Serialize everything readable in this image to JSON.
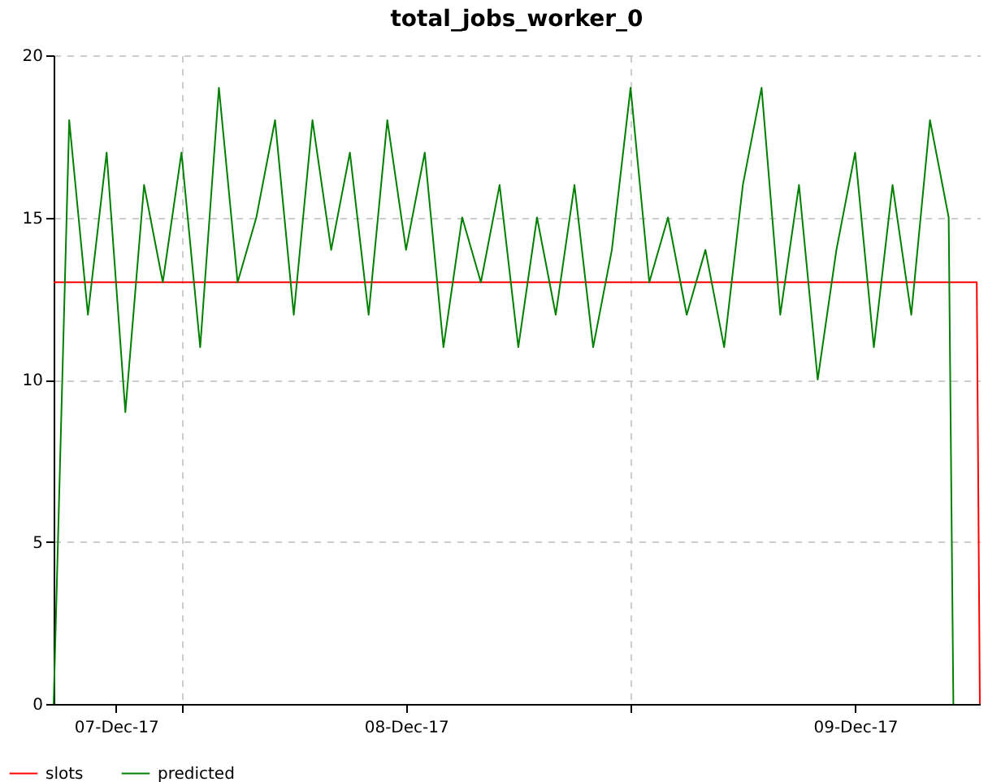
{
  "chart_data": {
    "type": "line",
    "title": "total_jobs_worker_0",
    "xlim": [
      "--12-07T05:10",
      "--12-09T06:40"
    ],
    "xticks": [
      {
        "value": "--12-07T08:30",
        "label": "07-Dec-17"
      },
      {
        "value": "--12-07T12:00",
        "label": null
      },
      {
        "value": "--12-08T00:00",
        "label": "08-Dec-17"
      },
      {
        "value": "--12-08T12:00",
        "label": null
      },
      {
        "value": "--12-09T00:00",
        "label": "09-Dec-17"
      }
    ],
    "ylim": [
      0,
      20
    ],
    "yticks": [
      0,
      5,
      10,
      15,
      20
    ],
    "grid": true,
    "legend": "bottom left",
    "series": [
      {
        "name": "slots",
        "color": "#ff0000",
        "x": [
          "--12-07T05:10",
          "--12-09T06:30",
          "--12-09T06:40"
        ],
        "values": [
          13,
          13,
          0
        ]
      },
      {
        "name": "predicted",
        "color": "#008000",
        "x": [
          "--12-07T05:10",
          "--12-07T06:00",
          "--12-07T07:00",
          "--12-07T08:00",
          "--12-07T09:00",
          "--12-07T10:00",
          "--12-07T11:00",
          "--12-07T12:00",
          "--12-07T13:00",
          "--12-07T14:00",
          "--12-07T15:00",
          "--12-07T16:00",
          "--12-07T17:00",
          "--12-07T18:00",
          "--12-07T19:00",
          "--12-07T20:00",
          "--12-07T21:00",
          "--12-07T22:00",
          "--12-07T23:00",
          "--12-08T00:00",
          "--12-08T01:00",
          "--12-08T02:00",
          "--12-08T03:00",
          "--12-08T04:00",
          "--12-08T05:00",
          "--12-08T06:00",
          "--12-08T07:00",
          "--12-08T08:00",
          "--12-08T09:00",
          "--12-08T10:00",
          "--12-08T11:00",
          "--12-08T12:00",
          "--12-08T13:00",
          "--12-08T14:00",
          "--12-08T15:00",
          "--12-08T16:00",
          "--12-08T17:00",
          "--12-08T18:00",
          "--12-08T19:00",
          "--12-08T20:00",
          "--12-08T21:00",
          "--12-08T22:00",
          "--12-08T23:00",
          "--12-09T00:00",
          "--12-09T01:00",
          "--12-09T02:00",
          "--12-09T03:00",
          "--12-09T04:00",
          "--12-09T05:00",
          "--12-09T05:15"
        ],
        "values": [
          0,
          18,
          12,
          17,
          9,
          16,
          13,
          17,
          11,
          19,
          13,
          15,
          18,
          12,
          18,
          14,
          17,
          12,
          18,
          14,
          17,
          11,
          15,
          13,
          16,
          11,
          15,
          12,
          16,
          11,
          14,
          19,
          13,
          15,
          12,
          14,
          11,
          16,
          19,
          12,
          16,
          10,
          14,
          17,
          11,
          16,
          12,
          18,
          15,
          0
        ]
      }
    ]
  }
}
